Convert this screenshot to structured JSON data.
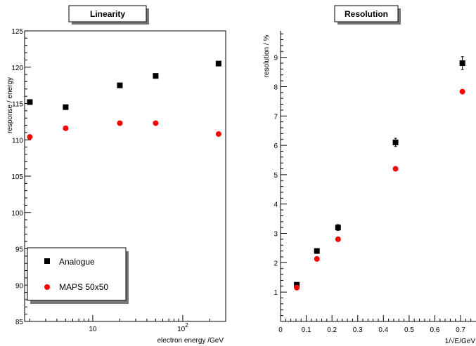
{
  "chart_data": [
    {
      "type": "scatter",
      "title": "Linearity",
      "xlabel": "electron energy /GeV",
      "ylabel": "response / energy",
      "xscale": "log",
      "xlim": [
        1.75,
        300
      ],
      "ylim": [
        85,
        125
      ],
      "x_ticks": [
        {
          "value": 10,
          "label": "10"
        },
        {
          "value": 100,
          "label": "10^2"
        }
      ],
      "y_ticks": [
        85,
        90,
        95,
        100,
        105,
        110,
        115,
        120,
        125
      ],
      "series": [
        {
          "name": "Analogue",
          "marker": "square",
          "color": "#000000",
          "x": [
            2,
            5,
            20,
            50,
            250
          ],
          "y": [
            115.2,
            114.5,
            117.5,
            118.8,
            120.5
          ]
        },
        {
          "name": "MAPS 50x50",
          "marker": "circle",
          "color": "#ff0000",
          "x": [
            2,
            5,
            20,
            50,
            250
          ],
          "y": [
            110.4,
            111.6,
            112.3,
            112.3,
            110.8
          ]
        }
      ],
      "legend": "bottom-left"
    },
    {
      "type": "scatter",
      "title": "Resolution",
      "xlabel": "1/√E/GeV",
      "ylabel": "resolution / %",
      "xlim": [
        0,
        0.76
      ],
      "ylim": [
        0,
        9.9
      ],
      "x_ticks": [
        0,
        0.1,
        0.2,
        0.3,
        0.4,
        0.5,
        0.6,
        0.7
      ],
      "y_ticks": [
        1,
        2,
        3,
        4,
        5,
        6,
        7,
        8,
        9
      ],
      "series": [
        {
          "name": "Analogue",
          "marker": "square",
          "color": "#000000",
          "x": [
            0.0632,
            0.1414,
            0.2236,
            0.4472,
            0.7071
          ],
          "y": [
            1.25,
            2.4,
            3.2,
            6.1,
            8.8
          ],
          "yerr": [
            0.07,
            0.05,
            0.1,
            0.14,
            0.22
          ]
        },
        {
          "name": "MAPS 50x50",
          "marker": "circle",
          "color": "#ff0000",
          "x": [
            0.0632,
            0.1414,
            0.2236,
            0.4472,
            0.7071
          ],
          "y": [
            1.15,
            2.13,
            2.8,
            5.2,
            7.83
          ]
        }
      ]
    }
  ]
}
